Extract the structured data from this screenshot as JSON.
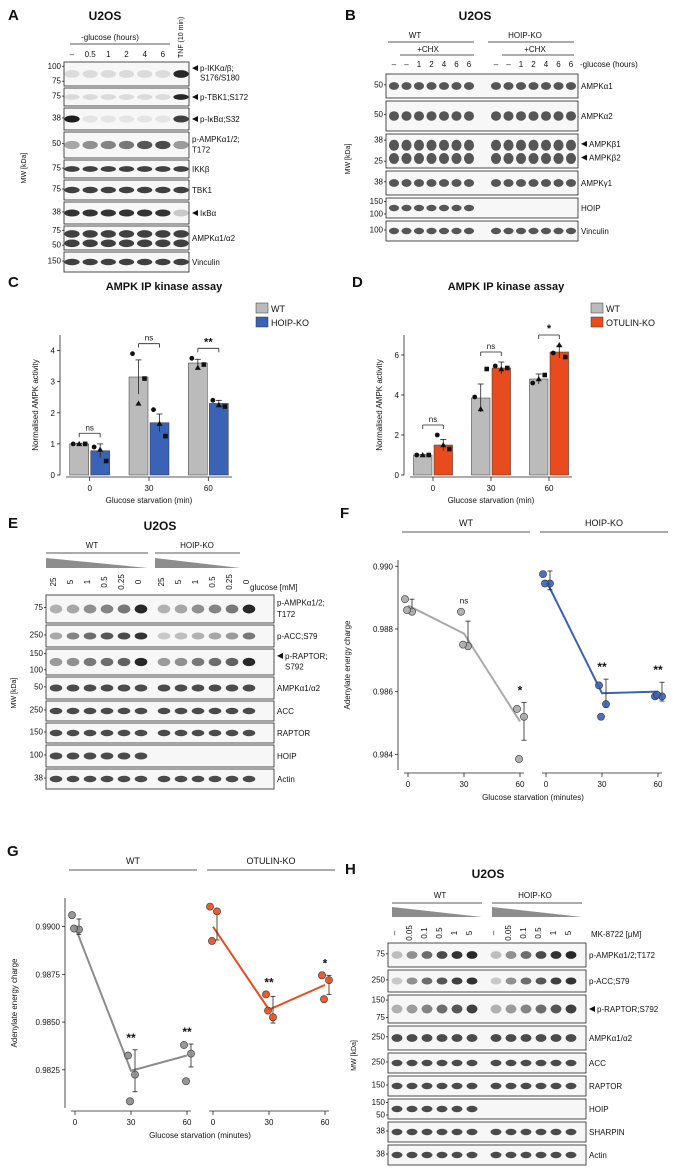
{
  "A": {
    "letter": "A",
    "cell": "U2OS",
    "cond": "-glucose (hours)",
    "lanes": [
      "–",
      "0.5",
      "1",
      "2",
      "4",
      "6"
    ],
    "tnf": "TNF (10 min)",
    "mw": "MW [kDa]",
    "rows": [
      {
        "label": [
          "p-IKKα/β;",
          "S176/S180"
        ],
        "arrow": true,
        "markers": [
          "100",
          "75"
        ]
      },
      {
        "label": [
          "p-TBK1;S172"
        ],
        "arrow": true,
        "markers": [
          "75"
        ]
      },
      {
        "label": [
          "p-IκBα;S32"
        ],
        "arrow": true,
        "markers": [
          "38"
        ]
      },
      {
        "label": [
          "p-AMPKα1/2;",
          "T172"
        ],
        "arrow": false,
        "markers": [
          "50"
        ]
      },
      {
        "label": [
          "IKKβ"
        ],
        "arrow": false,
        "markers": [
          "75"
        ]
      },
      {
        "label": [
          "TBK1"
        ],
        "arrow": false,
        "markers": [
          "75"
        ]
      },
      {
        "label": [
          "IκBα"
        ],
        "arrow": true,
        "markers": [
          "38"
        ]
      },
      {
        "label": [
          "AMPKα1/α2"
        ],
        "arrow": false,
        "markers": [
          "75",
          "50"
        ]
      },
      {
        "label": [
          "Vinculin"
        ],
        "arrow": false,
        "markers": [
          "150"
        ]
      }
    ]
  },
  "B": {
    "letter": "B",
    "cell": "U2OS",
    "groups": [
      "WT",
      "HOIP-KO"
    ],
    "chx": "+CHX",
    "lanes": [
      "–",
      "–",
      "1",
      "2",
      "4",
      "6",
      "6"
    ],
    "cond": "-glucose (hours)",
    "mw": "MW [kDa]",
    "rows": [
      {
        "label": [
          "AMPKα1"
        ],
        "markers": [
          "50"
        ]
      },
      {
        "label": [
          "AMPKα2"
        ],
        "markers": [
          "50"
        ]
      },
      {
        "label": [
          "AMPKβ1",
          "AMPKβ2"
        ],
        "markers": [
          "38",
          "25"
        ]
      },
      {
        "label": [
          "AMPKγ1"
        ],
        "markers": [
          "38"
        ]
      },
      {
        "label": [
          "HOIP"
        ],
        "markers": [
          "150",
          "100"
        ]
      },
      {
        "label": [
          "Vinculin"
        ],
        "markers": [
          "100"
        ]
      }
    ]
  },
  "C": {
    "letter": "C",
    "title": "AMPK IP kinase assay",
    "ylabel": "Normalised AMPK activity",
    "xlabel": "Glucose starvation (min)",
    "chart_data": {
      "type": "bar",
      "categories": [
        "0",
        "30",
        "60"
      ],
      "ylim": [
        0,
        4.5
      ],
      "yticks": [
        0,
        1,
        2,
        3,
        4
      ],
      "series": [
        {
          "name": "WT",
          "color": "#bbbbbb",
          "values": [
            1.0,
            3.15,
            3.6
          ],
          "err": [
            0.02,
            0.55,
            0.12
          ],
          "points": [
            [
              1.0,
              1.0,
              1.0
            ],
            [
              3.9,
              2.3,
              3.1
            ],
            [
              3.75,
              3.45,
              3.55
            ]
          ]
        },
        {
          "name": "HOIP-KO",
          "color": "#3a62b5",
          "values": [
            0.78,
            1.68,
            2.3
          ],
          "err": [
            0.22,
            0.28,
            0.1
          ],
          "points": [
            [
              0.9,
              0.82,
              0.45
            ],
            [
              2.1,
              1.65,
              1.25
            ],
            [
              2.4,
              2.25,
              2.2
            ]
          ]
        }
      ],
      "sig": [
        "ns",
        "ns",
        "**"
      ]
    }
  },
  "D": {
    "letter": "D",
    "title": "AMPK IP kinase assay",
    "ylabel": "Normalised AMPK activity",
    "xlabel": "Glucose starvation (min)",
    "chart_data": {
      "type": "bar",
      "categories": [
        "0",
        "30",
        "60"
      ],
      "ylim": [
        0,
        7
      ],
      "yticks": [
        0,
        2,
        4,
        6
      ],
      "series": [
        {
          "name": "WT",
          "color": "#bbbbbb",
          "values": [
            1.0,
            3.85,
            4.8
          ],
          "err": [
            0.02,
            0.7,
            0.25
          ],
          "points": [
            [
              1.0,
              1.0,
              1.0
            ],
            [
              3.9,
              3.3,
              5.3
            ],
            [
              4.6,
              4.8,
              5.0
            ]
          ]
        },
        {
          "name": "OTULIN-KO",
          "color": "#e84c1e",
          "values": [
            1.5,
            5.35,
            6.15
          ],
          "err": [
            0.28,
            0.3,
            0.3
          ],
          "points": [
            [
              2.0,
              1.5,
              1.3
            ],
            [
              5.45,
              5.3,
              5.35
            ],
            [
              6.1,
              6.5,
              5.9
            ]
          ]
        }
      ],
      "sig": [
        "ns",
        "ns",
        "*"
      ]
    }
  },
  "E": {
    "letter": "E",
    "cell": "U2OS",
    "groups": [
      "WT",
      "HOIP-KO"
    ],
    "lanes": [
      "25",
      "5",
      "1",
      "0.5",
      "0.25",
      "0"
    ],
    "cond": "glucose [mM]",
    "mw": "MW [kDa]",
    "rows": [
      {
        "label": [
          "p-AMPKα1/2;",
          "T172"
        ],
        "arrow": false,
        "markers": [
          "75"
        ]
      },
      {
        "label": [
          "p-ACC;S79"
        ],
        "arrow": false,
        "markers": [
          "250"
        ]
      },
      {
        "label": [
          "p-RAPTOR;",
          "S792"
        ],
        "arrow": true,
        "markers": [
          "150",
          "100"
        ]
      },
      {
        "label": [
          "AMPKα1/α2"
        ],
        "arrow": false,
        "markers": [
          "50"
        ]
      },
      {
        "label": [
          "ACC"
        ],
        "arrow": false,
        "markers": [
          "250"
        ]
      },
      {
        "label": [
          "RAPTOR"
        ],
        "arrow": false,
        "markers": [
          "150"
        ]
      },
      {
        "label": [
          "HOIP"
        ],
        "arrow": false,
        "markers": [
          "100"
        ]
      },
      {
        "label": [
          "Actin"
        ],
        "arrow": false,
        "markers": [
          "38"
        ]
      }
    ]
  },
  "F": {
    "letter": "F",
    "ylabel": "Adenylate energy charge",
    "xlabel": "Glucose starvation (minutes)",
    "chart_data": {
      "type": "line",
      "ylim": [
        0.9835,
        0.9902
      ],
      "yticks": [
        "0.984",
        "0.986",
        "0.988",
        "0.990"
      ],
      "ytickvals": [
        0.984,
        0.986,
        0.988,
        0.99
      ],
      "x": [
        "0",
        "30",
        "60"
      ],
      "series": [
        {
          "name": "WT",
          "color": "#a9a9a9",
          "means": [
            0.98875,
            0.98785,
            0.98505
          ],
          "err": [
            0.0002,
            0.0004,
            0.0006
          ],
          "points": [
            [
              0.98895,
              0.98855,
              0.9886
            ],
            [
              0.98855,
              0.98745,
              0.9875
            ],
            [
              0.98545,
              0.9852,
              0.98385
            ]
          ],
          "sig": [
            "",
            "ns",
            "*"
          ]
        },
        {
          "name": "HOIP-KO",
          "color": "#3a62b5",
          "means": [
            0.98955,
            0.98595,
            0.986
          ],
          "err": [
            0.0003,
            0.00045,
            0.0003
          ],
          "points": [
            [
              0.98975,
              0.98945,
              0.98945
            ],
            [
              0.9862,
              0.9856,
              0.9852
            ],
            [
              0.98585,
              0.98585,
              0.9859
            ]
          ],
          "sig": [
            "",
            "**",
            "**"
          ]
        }
      ]
    }
  },
  "G": {
    "letter": "G",
    "ylabel": "Adenylate energy charge",
    "xlabel": "Glucose starvation (minutes)",
    "chart_data": {
      "type": "line",
      "ylim": [
        0.9805,
        0.9915
      ],
      "yticks": [
        "0.9825",
        "0.9850",
        "0.9875",
        "0.9900"
      ],
      "ytickvals": [
        0.9825,
        0.985,
        0.9875,
        0.99
      ],
      "x": [
        "0",
        "30",
        "60"
      ],
      "series": [
        {
          "name": "WT",
          "color": "#8c8c8c",
          "means": [
            0.99,
            0.98245,
            0.98325
          ],
          "err": [
            0.0004,
            0.0011,
            0.0006
          ],
          "points": [
            [
              0.9906,
              0.98985,
              0.9899
            ],
            [
              0.98325,
              0.98225,
              0.98085
            ],
            [
              0.9838,
              0.98335,
              0.9819
            ]
          ],
          "sig": [
            "",
            "**",
            "**"
          ]
        },
        {
          "name": "OTULIN-KO",
          "color": "#e84c1e",
          "means": [
            0.99,
            0.98565,
            0.98695
          ],
          "err": [
            0.0007,
            0.0007,
            0.0005
          ],
          "points": [
            [
              0.99105,
              0.9908,
              0.98925
            ],
            [
              0.98645,
              0.98525,
              0.9856
            ],
            [
              0.98745,
              0.9872,
              0.9862
            ]
          ],
          "sig": [
            "",
            "**",
            "*"
          ]
        }
      ]
    }
  },
  "H": {
    "letter": "H",
    "cell": "U2OS",
    "groups": [
      "WT",
      "HOIP-KO"
    ],
    "lanes": [
      "–",
      "0.05",
      "0.1",
      "0.5",
      "1",
      "5"
    ],
    "cond": "MK-8722 [μM]",
    "mw": "MW [kDa]",
    "rows": [
      {
        "label": [
          "p-AMPKα1/2;T172"
        ],
        "arrow": false,
        "markers": [
          "75"
        ]
      },
      {
        "label": [
          "p-ACC;S79"
        ],
        "arrow": false,
        "markers": [
          "250"
        ]
      },
      {
        "label": [
          "p-RAPTOR;S792"
        ],
        "arrow": true,
        "markers": [
          "150",
          "75"
        ]
      },
      {
        "label": [
          "AMPKα1/α2"
        ],
        "arrow": false,
        "markers": [
          "250"
        ]
      },
      {
        "label": [
          "ACC"
        ],
        "arrow": false,
        "markers": [
          "250"
        ]
      },
      {
        "label": [
          "RAPTOR"
        ],
        "arrow": false,
        "markers": [
          "150"
        ]
      },
      {
        "label": [
          "HOIP"
        ],
        "arrow": false,
        "markers": [
          "150",
          "50"
        ]
      },
      {
        "label": [
          "SHARPIN"
        ],
        "arrow": false,
        "markers": [
          "38"
        ]
      },
      {
        "label": [
          "Actin"
        ],
        "arrow": false,
        "markers": [
          "38"
        ]
      }
    ]
  }
}
